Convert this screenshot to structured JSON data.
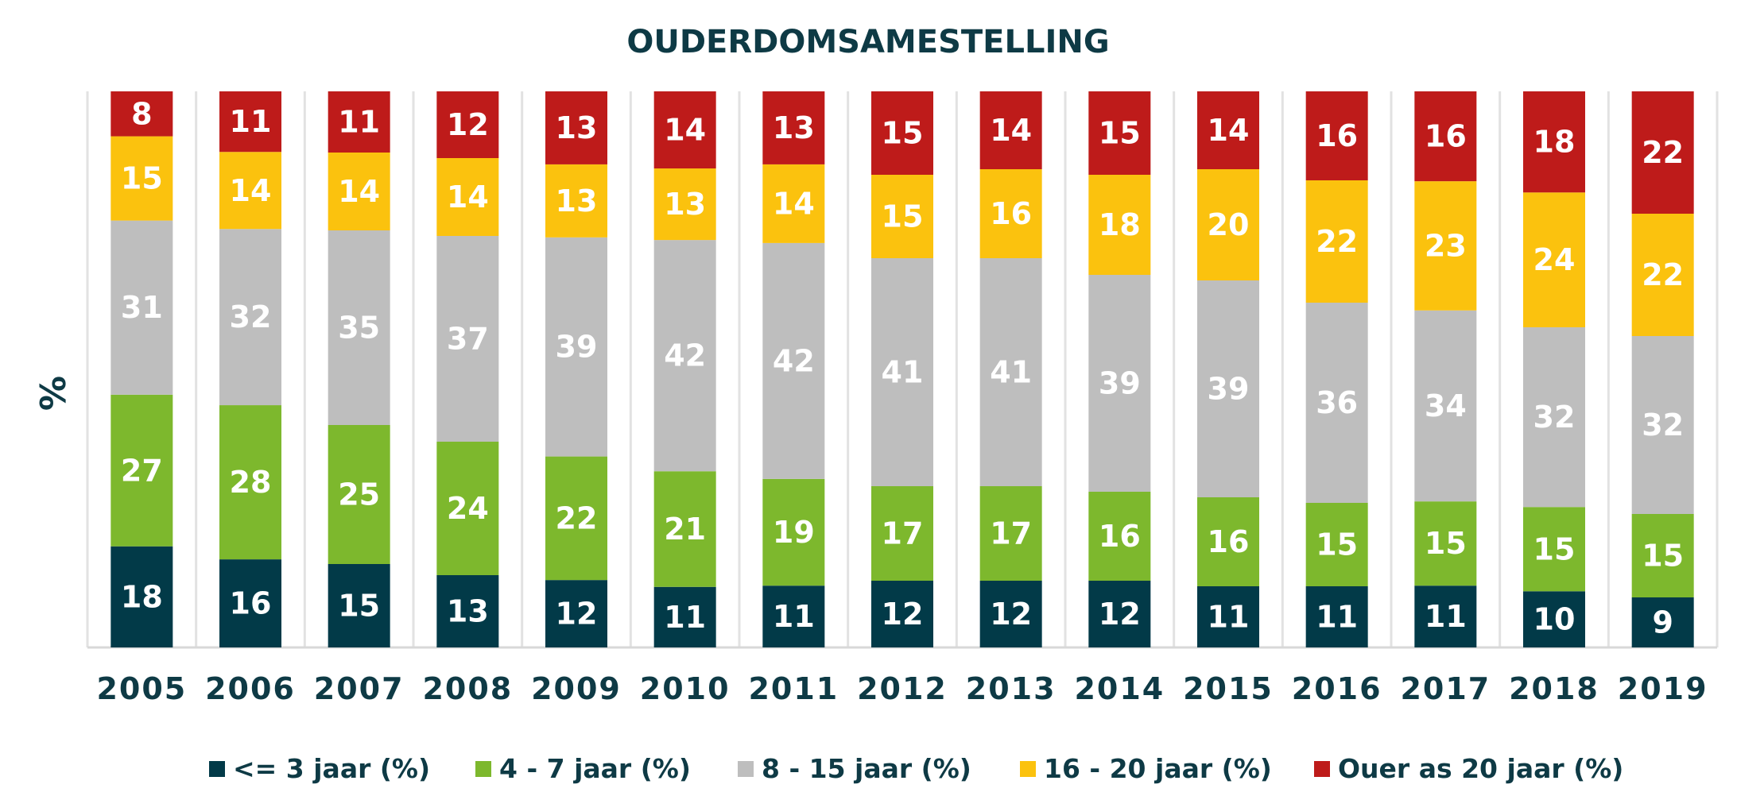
{
  "chart_data": {
    "type": "bar",
    "stacked": true,
    "title": "OUDERDOMSAMESTELLING",
    "xlabel": "",
    "ylabel": "%",
    "ylim": [
      0,
      100
    ],
    "grid": false,
    "legend_position": "bottom",
    "categories": [
      "2005",
      "2006",
      "2007",
      "2008",
      "2009",
      "2010",
      "2011",
      "2012",
      "2013",
      "2014",
      "2015",
      "2016",
      "2017",
      "2018",
      "2019"
    ],
    "series": [
      {
        "name": "<= 3 jaar (%)",
        "color": "#023a48",
        "values": [
          18,
          16,
          15,
          13,
          12,
          11,
          11,
          12,
          12,
          12,
          11,
          11,
          11,
          10,
          9
        ]
      },
      {
        "name": "4 - 7 jaar (%)",
        "color": "#7db82d",
        "values": [
          27,
          28,
          25,
          24,
          22,
          21,
          19,
          17,
          17,
          16,
          16,
          15,
          15,
          15,
          15
        ]
      },
      {
        "name": "8 - 15 jaar (%)",
        "color": "#bebebe",
        "values": [
          31,
          32,
          35,
          37,
          39,
          42,
          42,
          41,
          41,
          39,
          39,
          36,
          34,
          32,
          32
        ]
      },
      {
        "name": "16 - 20 jaar (%)",
        "color": "#fbc20e",
        "values": [
          15,
          14,
          14,
          14,
          13,
          13,
          14,
          15,
          16,
          18,
          20,
          22,
          23,
          24,
          22
        ]
      },
      {
        "name": "Ouer as 20 jaar (%)",
        "color": "#be1b1a",
        "values": [
          8,
          11,
          11,
          12,
          13,
          14,
          13,
          15,
          14,
          15,
          14,
          16,
          16,
          18,
          22
        ]
      }
    ]
  }
}
